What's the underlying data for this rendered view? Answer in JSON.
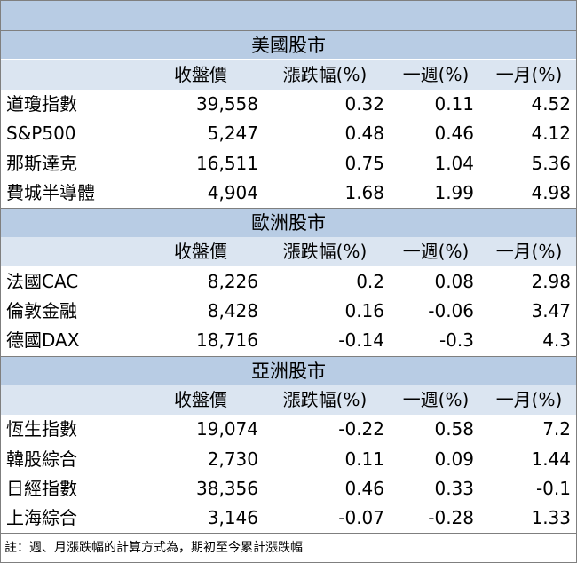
{
  "sections": [
    {
      "title": "美國股市",
      "columns": [
        "收盤價",
        "漲跌幅(%)",
        "一週(%)",
        "一月(%)"
      ],
      "rows": [
        [
          "道瓊指數",
          "39,558",
          "0.32",
          "0.11",
          "4.52"
        ],
        [
          "S&P500",
          "5,247",
          "0.48",
          "0.46",
          "4.12"
        ],
        [
          "那斯達克",
          "16,511",
          "0.75",
          "1.04",
          "5.36"
        ],
        [
          "費城半導體",
          "4,904",
          "1.68",
          "1.99",
          "4.98"
        ]
      ]
    },
    {
      "title": "歐洲股市",
      "columns": [
        "收盤價",
        "漲跌幅(%)",
        "一週(%)",
        "一月(%)"
      ],
      "rows": [
        [
          "法國CAC",
          "8,226",
          "0.2",
          "0.08",
          "2.98"
        ],
        [
          "倫敦金融",
          "8,428",
          "0.16",
          "-0.06",
          "3.47"
        ],
        [
          "德國DAX",
          "18,716",
          "-0.14",
          "-0.3",
          "4.3"
        ]
      ]
    },
    {
      "title": "亞洲股市",
      "columns": [
        "收盤價",
        "漲跌幅(%)",
        "一週(%)",
        "一月(%)"
      ],
      "rows": [
        [
          "恆生指數",
          "19,074",
          "-0.22",
          "0.58",
          "7.2"
        ],
        [
          "韓股綜合",
          "2,730",
          "0.11",
          "0.09",
          "1.44"
        ],
        [
          "日經指數",
          "38,356",
          "0.46",
          "0.33",
          "-0.1"
        ],
        [
          "上海綜合",
          "3,146",
          "-0.07",
          "-0.28",
          "1.33"
        ]
      ]
    }
  ],
  "note": "註：週、月漲跌幅的計算方式為，期初至今累計漲跌幅"
}
